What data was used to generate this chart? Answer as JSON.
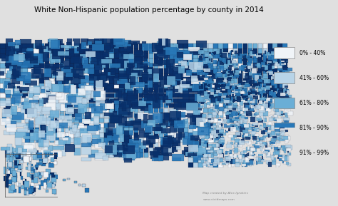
{
  "title": "White Non-Hispanic population percentage by county in 2014",
  "title_fontsize": 7.5,
  "background_color": "#e0e0e0",
  "legend_labels": [
    "0% - 40%",
    "41% - 60%",
    "61% - 80%",
    "81% - 90%",
    "91% - 99%"
  ],
  "legend_colors": [
    "#f0f4f8",
    "#b8d4e8",
    "#6aaed6",
    "#2878b8",
    "#08306b"
  ],
  "legend_fontsize": 5.5,
  "watermark": "Map created by Alex Ignatiev",
  "website": "www.vividmaps.com",
  "figsize": [
    4.74,
    2.89
  ],
  "dpi": 100,
  "county_color_weights": {
    "conus_default": [
      0.04,
      0.07,
      0.14,
      0.25,
      0.5
    ],
    "southeast": [
      0.25,
      0.3,
      0.25,
      0.12,
      0.08
    ],
    "southwest": [
      0.2,
      0.3,
      0.28,
      0.15,
      0.07
    ],
    "texas": [
      0.18,
      0.25,
      0.25,
      0.2,
      0.12
    ],
    "midwest": [
      0.02,
      0.04,
      0.1,
      0.24,
      0.6
    ],
    "northeast": [
      0.06,
      0.1,
      0.18,
      0.28,
      0.38
    ],
    "alaska": [
      0.15,
      0.25,
      0.3,
      0.2,
      0.1
    ]
  }
}
